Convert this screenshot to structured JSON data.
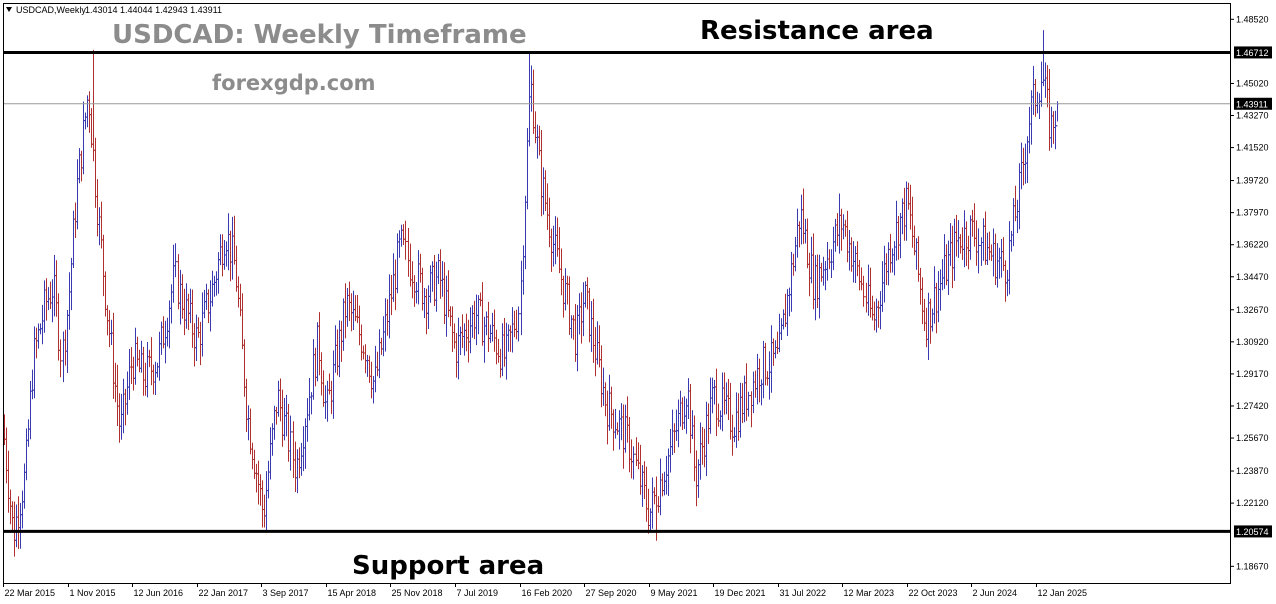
{
  "header": {
    "symbol": "USDCAD,Weekly",
    "ohlc": "1.43014 1.44044 1.42943 1.43911"
  },
  "annotations": {
    "title": "USDCAD: Weekly Timeframe",
    "site": "forexgdp.com",
    "resistance": "Resistance area",
    "support": "Support area"
  },
  "colors": {
    "up_wick": "#3a3ab0",
    "down_wick": "#b03030",
    "zone_line": "#000000",
    "current_line": "#999999",
    "frame": "#000000"
  },
  "chart_data": {
    "type": "candlestick",
    "symbol": "USDCAD",
    "timeframe": "Weekly",
    "ylim": [
      1.1776,
      1.4941
    ],
    "grid": false,
    "y_ticks": [
      "1.48520",
      "1.46712",
      "1.45020",
      "1.43911",
      "1.43270",
      "1.41520",
      "1.39720",
      "1.37970",
      "1.36220",
      "1.34470",
      "1.32670",
      "1.30920",
      "1.29170",
      "1.27420",
      "1.25670",
      "1.23870",
      "1.22120",
      "1.20574",
      "1.18670"
    ],
    "x_ticks": [
      "22 Mar 2015",
      "1 Nov 2015",
      "12 Jun 2016",
      "22 Jan 2017",
      "3 Sep 2017",
      "15 Apr 2018",
      "25 Nov 2018",
      "7 Jul 2019",
      "16 Feb 2020",
      "27 Sep 2020",
      "9 May 2021",
      "19 Dec 2021",
      "31 Jul 2022",
      "12 Mar 2023",
      "22 Oct 2023",
      "2 Jun 2024",
      "12 Jan 2025"
    ],
    "resistance_level": 1.46712,
    "support_level": 1.20574,
    "last_price": 1.43911,
    "last_ohlc": {
      "open": 1.43014,
      "high": 1.44044,
      "low": 1.42943,
      "close": 1.43911
    },
    "price_path": [
      [
        "22 Mar 2015",
        1.262
      ],
      [
        "26 Apr 2015",
        1.204
      ],
      [
        "7 Jun 2015",
        1.237
      ],
      [
        "5 Jul 2015",
        1.3
      ],
      [
        "16 Aug 2015",
        1.33
      ],
      [
        "13 Sep 2015",
        1.34
      ],
      [
        "11 Oct 2015",
        1.3
      ],
      [
        "1 Nov 2015",
        1.33
      ],
      [
        "29 Nov 2015",
        1.39
      ],
      [
        "10 Jan 2016",
        1.446
      ],
      [
        "7 Feb 2016",
        1.39
      ],
      [
        "13 Mar 2016",
        1.33
      ],
      [
        "1 May 2016",
        1.26
      ],
      [
        "12 Jun 2016",
        1.3
      ],
      [
        "24 Jul 2016",
        1.29
      ],
      [
        "11 Sep 2016",
        1.3
      ],
      [
        "6 Nov 2016",
        1.345
      ],
      [
        "4 Dec 2016",
        1.33
      ],
      [
        "22 Jan 2017",
        1.31
      ],
      [
        "19 Mar 2017",
        1.34
      ],
      [
        "30 Apr 2017",
        1.37
      ],
      [
        "4 Jun 2017",
        1.35
      ],
      [
        "16 Jul 2017",
        1.27
      ],
      [
        "10 Sep 2017",
        1.215
      ],
      [
        "29 Oct 2017",
        1.28
      ],
      [
        "31 Dec 2017",
        1.24
      ],
      [
        "18 Mar 2018",
        1.31
      ],
      [
        "15 Apr 2018",
        1.27
      ],
      [
        "24 Jun 2018",
        1.33
      ],
      [
        "2 Sep 2018",
        1.305
      ],
      [
        "30 Sep 2018",
        1.285
      ],
      [
        "30 Dec 2018",
        1.362
      ],
      [
        "24 Mar 2019",
        1.335
      ],
      [
        "12 May 2019",
        1.345
      ],
      [
        "7 Jul 2019",
        1.305
      ],
      [
        "15 Sep 2019",
        1.325
      ],
      [
        "3 Nov 2019",
        1.315
      ],
      [
        "29 Dec 2019",
        1.3
      ],
      [
        "16 Feb 2020",
        1.33
      ],
      [
        "22 Mar 2020",
        1.452
      ],
      [
        "26 Apr 2020",
        1.4
      ],
      [
        "14 Jun 2020",
        1.36
      ],
      [
        "30 Aug 2020",
        1.31
      ],
      [
        "27 Sep 2020",
        1.335
      ],
      [
        "13 Dec 2020",
        1.275
      ],
      [
        "28 Feb 2021",
        1.255
      ],
      [
        "9 May 2021",
        1.215
      ],
      [
        "1 Aug 2021",
        1.255
      ],
      [
        "19 Sep 2021",
        1.285
      ],
      [
        "17 Oct 2021",
        1.235
      ],
      [
        "19 Dec 2021",
        1.28
      ],
      [
        "27 Feb 2022",
        1.265
      ],
      [
        "29 May 2022",
        1.295
      ],
      [
        "31 Jul 2022",
        1.3
      ],
      [
        "16 Oct 2022",
        1.38
      ],
      [
        "4 Dec 2022",
        1.34
      ],
      [
        "12 Mar 2023",
        1.375
      ],
      [
        "25 Jun 2023",
        1.32
      ],
      [
        "20 Aug 2023",
        1.36
      ],
      [
        "22 Oct 2023",
        1.385
      ],
      [
        "24 Dec 2023",
        1.32
      ],
      [
        "14 Apr 2024",
        1.365
      ],
      [
        "2 Jun 2024",
        1.37
      ],
      [
        "18 Aug 2024",
        1.355
      ],
      [
        "29 Sep 2024",
        1.35
      ],
      [
        "17 Nov 2024",
        1.395
      ],
      [
        "22 Dec 2024",
        1.435
      ],
      [
        "2 Feb 2025",
        1.455
      ],
      [
        "2 Mar 2025",
        1.425
      ],
      [
        "30 Mar 2025",
        1.439
      ]
    ],
    "spikes": [
      {
        "date": "24 Jan 2016",
        "high": 1.4685
      },
      {
        "date": "15 Mar 2020",
        "high": 1.4665
      },
      {
        "date": "2 Feb 2025",
        "high": 1.4793
      }
    ],
    "dips": [
      {
        "date": "26 Apr 2015",
        "low": 1.192
      },
      {
        "date": "17 Sep 2017",
        "low": 1.206
      },
      {
        "date": "30 May 2021",
        "low": 1.2007
      }
    ]
  }
}
